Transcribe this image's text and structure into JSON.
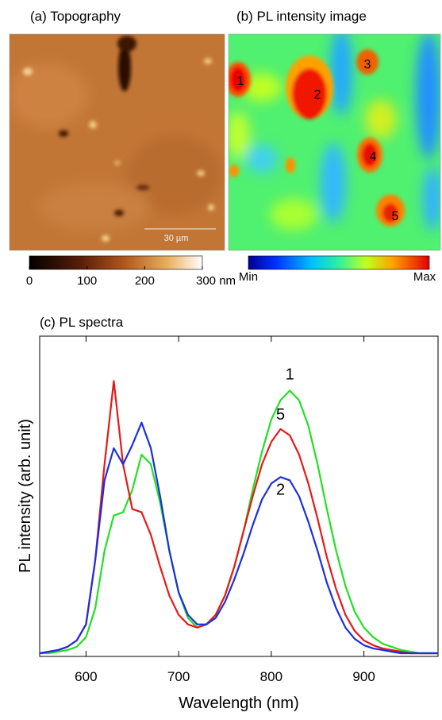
{
  "panels": {
    "a": {
      "title": "(a) Topography",
      "scale_bar": "30 µm",
      "colorbar": {
        "range": [
          0,
          300
        ],
        "ticks": [
          0,
          100,
          200,
          {
            "value": 300,
            "label": "300 nm"
          }
        ]
      }
    },
    "b": {
      "title": "(b) PL intensity image",
      "spot_labels": [
        "1",
        "2",
        "3",
        "4",
        "5"
      ],
      "colorbar": {
        "min_label": "Min",
        "max_label": "Max"
      }
    }
  },
  "chart_data": {
    "type": "line",
    "title": "(c) PL spectra",
    "x_label": "Wavelength (nm)",
    "y_label": "PL intensity (arb. unit)",
    "x": [
      550,
      560,
      570,
      580,
      590,
      600,
      610,
      620,
      630,
      640,
      650,
      660,
      670,
      680,
      690,
      700,
      710,
      720,
      730,
      740,
      750,
      760,
      770,
      780,
      790,
      800,
      810,
      820,
      830,
      840,
      850,
      860,
      870,
      880,
      890,
      900,
      910,
      920,
      930,
      940,
      950,
      960,
      970,
      980
    ],
    "series": [
      {
        "name": "1",
        "color": "#22e022",
        "values": [
          0.01,
          0.01,
          0.015,
          0.02,
          0.03,
          0.06,
          0.15,
          0.33,
          0.44,
          0.45,
          0.52,
          0.63,
          0.6,
          0.48,
          0.33,
          0.2,
          0.12,
          0.09,
          0.1,
          0.13,
          0.19,
          0.28,
          0.39,
          0.52,
          0.64,
          0.74,
          0.8,
          0.83,
          0.8,
          0.72,
          0.6,
          0.46,
          0.33,
          0.22,
          0.14,
          0.09,
          0.06,
          0.04,
          0.03,
          0.02,
          0.015,
          0.01,
          0.01,
          0.01
        ]
      },
      {
        "name": "5",
        "color": "#e81818",
        "values": [
          0.01,
          0.015,
          0.02,
          0.03,
          0.05,
          0.1,
          0.3,
          0.6,
          0.86,
          0.6,
          0.46,
          0.45,
          0.38,
          0.28,
          0.19,
          0.13,
          0.1,
          0.09,
          0.1,
          0.13,
          0.19,
          0.28,
          0.39,
          0.5,
          0.6,
          0.67,
          0.71,
          0.69,
          0.63,
          0.54,
          0.43,
          0.31,
          0.21,
          0.13,
          0.08,
          0.05,
          0.035,
          0.025,
          0.02,
          0.015,
          0.01,
          0.01,
          0.01,
          0.01
        ]
      },
      {
        "name": "2",
        "color": "#1a2ee0",
        "values": [
          0.01,
          0.015,
          0.02,
          0.03,
          0.05,
          0.1,
          0.3,
          0.55,
          0.65,
          0.6,
          0.66,
          0.73,
          0.65,
          0.5,
          0.33,
          0.2,
          0.13,
          0.1,
          0.1,
          0.12,
          0.17,
          0.24,
          0.32,
          0.41,
          0.49,
          0.54,
          0.56,
          0.55,
          0.5,
          0.42,
          0.33,
          0.23,
          0.15,
          0.09,
          0.055,
          0.035,
          0.025,
          0.02,
          0.015,
          0.01,
          0.01,
          0.01,
          0.01,
          0.01
        ]
      }
    ],
    "xlim": [
      550,
      980
    ],
    "xticks": [
      600,
      700,
      800,
      900
    ],
    "ylim": [
      0,
      1
    ]
  }
}
